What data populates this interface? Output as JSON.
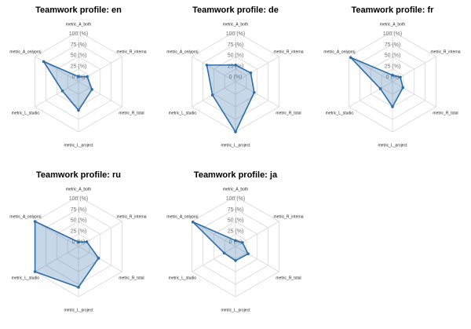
{
  "radar": {
    "scale": {
      "min": 0,
      "max": 100,
      "rings": [
        25,
        50,
        75,
        100
      ],
      "ring_values": [
        100,
        75,
        50,
        25,
        0
      ],
      "ring_labels": [
        "100 (%)",
        "75 (%)",
        "50 (%)",
        "25 (%)",
        "0 (%)"
      ]
    },
    "colors": {
      "polygon_stroke": "#2e6da6",
      "polygon_fill": "rgba(46,109,166,0.27)",
      "grid_line": "#d9d9d9",
      "ring_label": "#737373",
      "axis_label": "#1a1a1a",
      "title": "#000000",
      "background": "#ffffff"
    }
  },
  "chart_data": [
    {
      "type": "radar",
      "title": "Teamwork profile: en",
      "axes": [
        "metric_A_both",
        "metric_R_interna",
        "metric_R_total",
        "metric_L_project",
        "metric_L_studio",
        "metric_A_onlyproj"
      ],
      "values": [
        10,
        20,
        31,
        57,
        37,
        80
      ],
      "ylim": [
        0,
        100
      ]
    },
    {
      "type": "radar",
      "title": "Teamwork profile: de",
      "axes": [
        "metric_A_both",
        "metric_R_interna",
        "metric_R_total",
        "metric_L_project",
        "metric_L_studio",
        "metric_A_onlyproj"
      ],
      "values": [
        33,
        35,
        43,
        100,
        53,
        66
      ],
      "ylim": [
        0,
        100
      ]
    },
    {
      "type": "radar",
      "title": "Teamwork profile: fr",
      "axes": [
        "metric_A_both",
        "metric_R_interna",
        "metric_R_total",
        "metric_L_project",
        "metric_L_studio",
        "metric_A_onlyproj"
      ],
      "values": [
        13,
        18,
        24,
        50,
        28,
        96
      ],
      "ylim": [
        0,
        100
      ]
    },
    {
      "type": "radar",
      "title": "Teamwork profile: ru",
      "axes": [
        "metric_A_both",
        "metric_R_interna",
        "metric_R_total",
        "metric_L_project",
        "metric_L_studio",
        "metric_A_onlyproj"
      ],
      "values": [
        9,
        19,
        46,
        81,
        100,
        100
      ],
      "ylim": [
        0,
        100
      ]
    },
    {
      "type": "radar",
      "title": "Teamwork profile: ja",
      "axes": [
        "metric_A_both",
        "metric_R_interna",
        "metric_R_total",
        "metric_L_project",
        "metric_L_studio",
        "metric_A_onlyproj"
      ],
      "values": [
        12,
        16,
        29,
        28,
        26,
        98
      ],
      "ylim": [
        0,
        100
      ]
    }
  ]
}
